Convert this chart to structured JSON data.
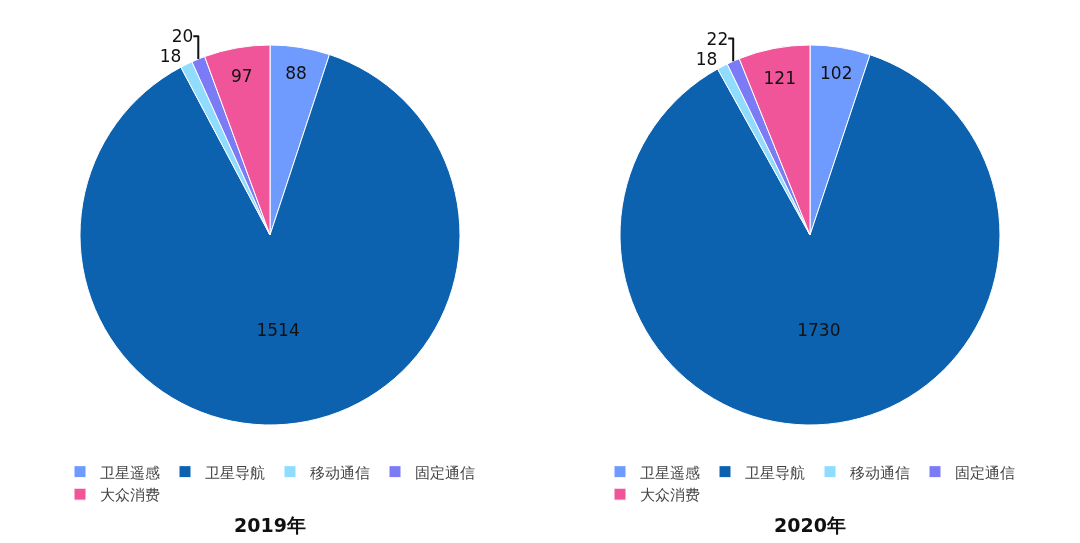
{
  "chart_data": [
    {
      "type": "pie",
      "title": "2019年",
      "categories": [
        "卫星遥感",
        "卫星导航",
        "移动通信",
        "固定通信",
        "大众消费"
      ],
      "values": [
        88,
        1514,
        18,
        20,
        97
      ],
      "colors": [
        "#6f9bff",
        "#0d62b0",
        "#8fdcff",
        "#7b7cf5",
        "#f0559a"
      ],
      "data_labels": true,
      "legend": "bottom"
    },
    {
      "type": "pie",
      "title": "2020年",
      "categories": [
        "卫星遥感",
        "卫星导航",
        "移动通信",
        "固定通信",
        "大众消费"
      ],
      "values": [
        102,
        1730,
        18,
        22,
        121
      ],
      "colors": [
        "#6f9bff",
        "#0d62b0",
        "#8fdcff",
        "#7b7cf5",
        "#f0559a"
      ],
      "data_labels": true,
      "legend": "bottom"
    }
  ]
}
